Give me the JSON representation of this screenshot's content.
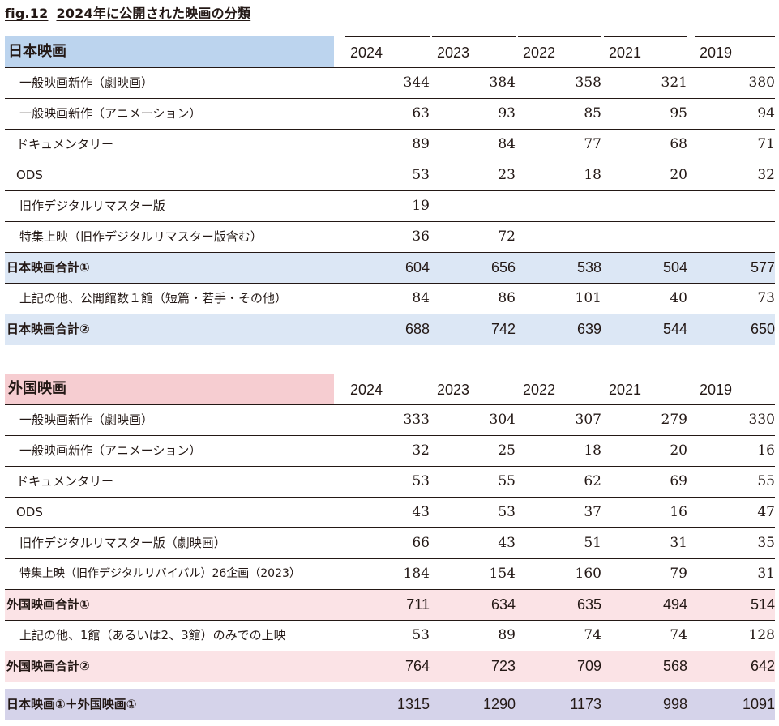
{
  "figure": {
    "number": "fig.12",
    "title": "2024年に公開された映画の分類"
  },
  "japanese": {
    "header": "日本映画",
    "years": [
      "2024",
      "2023",
      "2022",
      "2021",
      "2019"
    ],
    "rows": [
      {
        "label": "一般映画新作（劇映画）",
        "values": [
          "344",
          "384",
          "358",
          "321",
          "380"
        ]
      },
      {
        "label": "一般映画新作（アニメーション）",
        "values": [
          "63",
          "93",
          "85",
          "95",
          "94"
        ]
      },
      {
        "label": "ドキュメンタリー",
        "values": [
          "89",
          "84",
          "77",
          "68",
          "71"
        ]
      },
      {
        "label": "ODS",
        "values": [
          "53",
          "23",
          "18",
          "20",
          "32"
        ]
      },
      {
        "label": "旧作デジタルリマスター版",
        "values": [
          "19",
          "",
          "",
          "",
          ""
        ]
      },
      {
        "label": "特集上映（旧作デジタルリマスター版含む）",
        "values": [
          "36",
          "72",
          "",
          "",
          ""
        ]
      }
    ],
    "total1": {
      "label": "日本映画合計①",
      "values": [
        "604",
        "656",
        "538",
        "504",
        "577"
      ]
    },
    "other": {
      "label": "上記の他、公開館数１館（短篇・若手・その他）",
      "values": [
        "84",
        "86",
        "101",
        "40",
        "73"
      ]
    },
    "total2": {
      "label": "日本映画合計②",
      "values": [
        "688",
        "742",
        "639",
        "544",
        "650"
      ]
    }
  },
  "foreign": {
    "header": "外国映画",
    "years": [
      "2024",
      "2023",
      "2022",
      "2021",
      "2019"
    ],
    "rows": [
      {
        "label": "一般映画新作（劇映画）",
        "values": [
          "333",
          "304",
          "307",
          "279",
          "330"
        ]
      },
      {
        "label": "一般映画新作（アニメーション）",
        "values": [
          "32",
          "25",
          "18",
          "20",
          "16"
        ]
      },
      {
        "label": "ドキュメンタリー",
        "values": [
          "53",
          "55",
          "62",
          "69",
          "55"
        ]
      },
      {
        "label": "ODS",
        "values": [
          "43",
          "53",
          "37",
          "16",
          "47"
        ]
      },
      {
        "label": "旧作デジタルリマスター版（劇映画）",
        "values": [
          "66",
          "43",
          "51",
          "31",
          "35"
        ]
      },
      {
        "label": "特集上映（旧作デジタルリバイバル）26企画（2023）",
        "values": [
          "184",
          "154",
          "160",
          "79",
          "31"
        ]
      }
    ],
    "total1": {
      "label": "外国映画合計①",
      "values": [
        "711",
        "634",
        "635",
        "494",
        "514"
      ]
    },
    "other": {
      "label": "上記の他、1館（あるいは2、3館）のみでの上映",
      "values": [
        "53",
        "89",
        "74",
        "74",
        "128"
      ]
    },
    "total2": {
      "label": "外国映画合計②",
      "values": [
        "764",
        "723",
        "709",
        "568",
        "642"
      ]
    }
  },
  "grand_total": {
    "label": "日本映画①＋外国映画①",
    "values": [
      "1315",
      "1290",
      "1173",
      "998",
      "1091"
    ]
  }
}
